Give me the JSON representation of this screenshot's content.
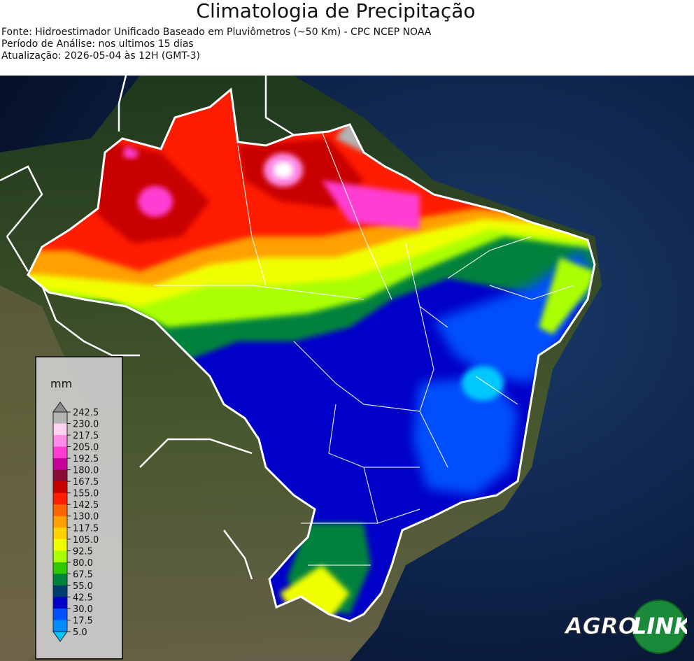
{
  "title": "Climatologia de Precipitação",
  "meta": {
    "source": "Fonte: Hidroestimador Unificado Baseado em Pluviômetros (~50 Km) - CPC NCEP NOAA",
    "period": "Período de Análise: nos ultimos 15 dias",
    "updated": "Atualização: 2026-05-04 às 12H (GMT-3)"
  },
  "legend": {
    "unit": "mm",
    "ticks": [
      "242.5",
      "230.0",
      "217.5",
      "205.0",
      "192.5",
      "180.0",
      "167.5",
      "155.0",
      "142.5",
      "130.0",
      "117.5",
      "105.0",
      "92.5",
      "80.0",
      "67.5",
      "55.0",
      "42.5",
      "30.0",
      "17.5",
      "5.0"
    ],
    "colors": [
      "#8c8c8c",
      "#b4b4b4",
      "#ffd2f0",
      "#ff8ce6",
      "#ff3cd2",
      "#c8009b",
      "#8c0a37",
      "#c80000",
      "#ff1e00",
      "#ff6400",
      "#ffa000",
      "#ffd200",
      "#f0ff00",
      "#aaff00",
      "#32c800",
      "#00823c",
      "#003c6e",
      "#0000c8",
      "#0050ff",
      "#008cff",
      "#00c8ff"
    ]
  },
  "logo": {
    "text1": "AGRO",
    "text2": "LINK"
  },
  "colors": {
    "ocean": "#0a1a35",
    "land": "#2a3320",
    "borders": "#ffffff"
  }
}
